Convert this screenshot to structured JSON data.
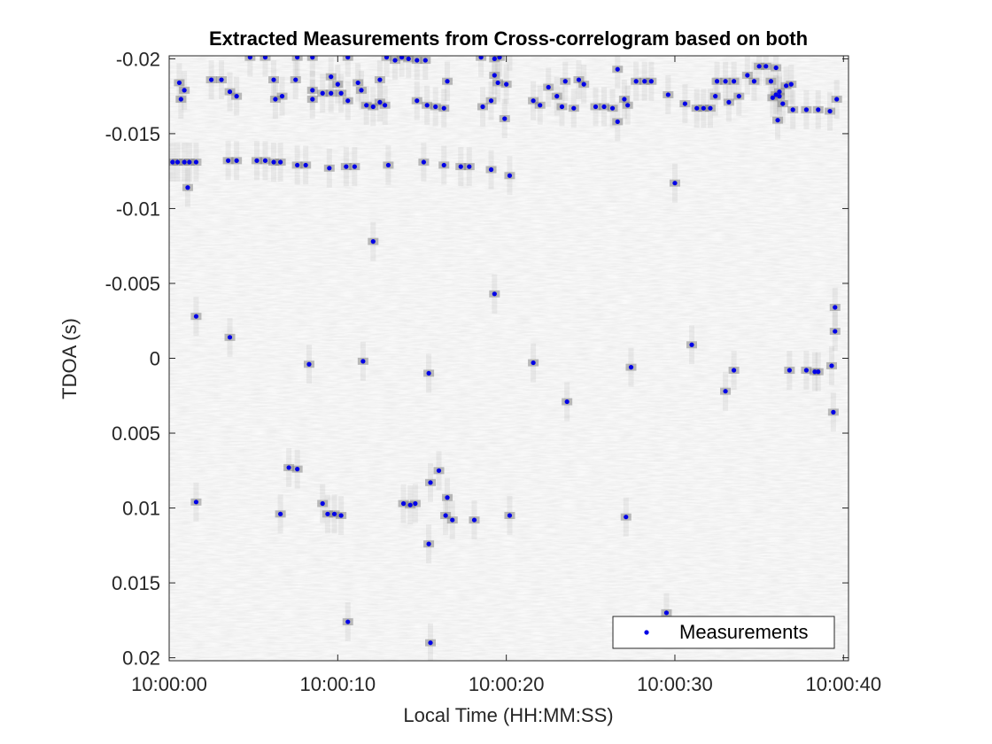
{
  "chart_data": {
    "type": "scatter",
    "title": "Extracted Measurements from Cross-correlogram based on both",
    "xlabel": "Local Time (HH:MM:SS)",
    "ylabel": "TDOA (s)",
    "xlim": [
      0,
      40.3
    ],
    "ylim": [
      -0.0202,
      0.0202
    ],
    "y_reversed": true,
    "grid": false,
    "background": "cross-correlogram (grayscale)",
    "x_ticks": [
      0,
      10,
      20,
      30,
      40
    ],
    "x_tick_labels": [
      "10:00:00",
      "10:00:10",
      "10:00:20",
      "10:00:30",
      "10:00:40"
    ],
    "y_ticks": [
      -0.02,
      -0.015,
      -0.01,
      -0.005,
      0,
      0.005,
      0.01,
      0.015,
      0.02
    ],
    "y_tick_labels": [
      "-0.02",
      "-0.015",
      "-0.01",
      "-0.005",
      "0",
      "0.005",
      "0.01",
      "0.015",
      "0.02"
    ],
    "legend": {
      "entries": [
        "Measurements"
      ],
      "position": "bottom-right"
    },
    "colors": {
      "marker": "#0000e6",
      "axis": "#262626",
      "background_base": "#ececec"
    },
    "series": [
      {
        "name": "Measurements",
        "points": [
          [
            0.2,
            -0.0131
          ],
          [
            0.5,
            -0.0131
          ],
          [
            0.9,
            -0.0131
          ],
          [
            1.2,
            -0.0131
          ],
          [
            1.6,
            -0.0131
          ],
          [
            0.6,
            -0.0184
          ],
          [
            0.9,
            -0.0179
          ],
          [
            0.7,
            -0.0173
          ],
          [
            1.1,
            -0.0114
          ],
          [
            2.5,
            -0.0186
          ],
          [
            3.1,
            -0.0186
          ],
          [
            3.6,
            -0.0178
          ],
          [
            4.0,
            -0.0175
          ],
          [
            3.5,
            -0.0132
          ],
          [
            4.0,
            -0.0132
          ],
          [
            4.8,
            -0.0201
          ],
          [
            5.7,
            -0.0201
          ],
          [
            5.2,
            -0.0132
          ],
          [
            5.7,
            -0.0132
          ],
          [
            6.2,
            -0.0131
          ],
          [
            6.6,
            -0.0131
          ],
          [
            6.2,
            -0.0186
          ],
          [
            6.3,
            -0.0173
          ],
          [
            6.7,
            -0.0175
          ],
          [
            7.5,
            -0.0186
          ],
          [
            7.6,
            -0.0201
          ],
          [
            8.5,
            -0.0201
          ],
          [
            7.6,
            -0.0129
          ],
          [
            8.1,
            -0.0129
          ],
          [
            8.5,
            -0.0173
          ],
          [
            8.5,
            -0.0179
          ],
          [
            9.1,
            -0.0177
          ],
          [
            9.6,
            -0.0177
          ],
          [
            9.6,
            -0.0188
          ],
          [
            10.0,
            -0.0183
          ],
          [
            10.2,
            -0.0177
          ],
          [
            10.6,
            -0.0201
          ],
          [
            9.5,
            -0.0127
          ],
          [
            10.5,
            -0.0128
          ],
          [
            11.0,
            -0.0128
          ],
          [
            10.6,
            -0.0172
          ],
          [
            11.2,
            -0.0184
          ],
          [
            11.4,
            -0.0179
          ],
          [
            11.7,
            -0.0169
          ],
          [
            12.1,
            -0.0168
          ],
          [
            12.5,
            -0.0171
          ],
          [
            12.8,
            -0.0169
          ],
          [
            12.5,
            -0.0186
          ],
          [
            13.0,
            -0.0129
          ],
          [
            12.9,
            -0.0201
          ],
          [
            13.4,
            -0.0199
          ],
          [
            13.8,
            -0.0201
          ],
          [
            14.2,
            -0.02
          ],
          [
            14.7,
            -0.0199
          ],
          [
            15.2,
            -0.0199
          ],
          [
            14.7,
            -0.0172
          ],
          [
            15.3,
            -0.0169
          ],
          [
            15.8,
            -0.0168
          ],
          [
            16.3,
            -0.0167
          ],
          [
            15.1,
            -0.0131
          ],
          [
            16.3,
            -0.0129
          ],
          [
            17.3,
            -0.0128
          ],
          [
            17.8,
            -0.0128
          ],
          [
            16.5,
            -0.0185
          ],
          [
            18.5,
            -0.0201
          ],
          [
            19.3,
            -0.02
          ],
          [
            18.6,
            -0.0168
          ],
          [
            19.1,
            -0.0172
          ],
          [
            19.3,
            -0.0189
          ],
          [
            19.5,
            -0.0184
          ],
          [
            19.6,
            -0.0201
          ],
          [
            20.0,
            -0.0183
          ],
          [
            20.2,
            -0.0205
          ],
          [
            19.1,
            -0.0126
          ],
          [
            20.2,
            -0.0122
          ],
          [
            19.9,
            -0.016
          ],
          [
            12.1,
            -0.0078
          ],
          [
            19.3,
            -0.0043
          ],
          [
            21.6,
            -0.0172
          ],
          [
            22.0,
            -0.0169
          ],
          [
            22.5,
            -0.0181
          ],
          [
            23.0,
            -0.0175
          ],
          [
            23.3,
            -0.0168
          ],
          [
            23.5,
            -0.0185
          ],
          [
            24.0,
            -0.0167
          ],
          [
            24.3,
            -0.0186
          ],
          [
            24.6,
            -0.0183
          ],
          [
            25.3,
            -0.0168
          ],
          [
            25.8,
            -0.0168
          ],
          [
            26.3,
            -0.0167
          ],
          [
            26.6,
            -0.0158
          ],
          [
            26.6,
            -0.0193
          ],
          [
            27.0,
            -0.0173
          ],
          [
            27.2,
            -0.0169
          ],
          [
            27.7,
            -0.0185
          ],
          [
            28.2,
            -0.0185
          ],
          [
            28.6,
            -0.0185
          ],
          [
            29.6,
            -0.0176
          ],
          [
            30.0,
            -0.0117
          ],
          [
            30.6,
            -0.017
          ],
          [
            31.3,
            -0.0167
          ],
          [
            31.7,
            -0.0167
          ],
          [
            32.1,
            -0.0167
          ],
          [
            32.4,
            -0.0175
          ],
          [
            32.5,
            -0.0185
          ],
          [
            33.0,
            -0.0185
          ],
          [
            33.2,
            -0.0171
          ],
          [
            33.5,
            -0.0185
          ],
          [
            33.8,
            -0.0175
          ],
          [
            34.3,
            -0.0189
          ],
          [
            34.7,
            -0.0185
          ],
          [
            35.0,
            -0.0195
          ],
          [
            35.4,
            -0.0195
          ],
          [
            35.7,
            -0.0185
          ],
          [
            35.8,
            -0.0174
          ],
          [
            36.0,
            -0.0194
          ],
          [
            36.2,
            -0.0178
          ],
          [
            36.2,
            -0.0175
          ],
          [
            36.4,
            -0.017
          ],
          [
            36.6,
            -0.0182
          ],
          [
            36.9,
            -0.0183
          ],
          [
            37.0,
            -0.0166
          ],
          [
            36.1,
            -0.0159
          ],
          [
            36.0,
            -0.0176
          ],
          [
            37.8,
            -0.0166
          ],
          [
            38.5,
            -0.0166
          ],
          [
            39.2,
            -0.0165
          ],
          [
            39.6,
            -0.0173
          ],
          [
            1.6,
            -0.0028
          ],
          [
            3.6,
            -0.0014
          ],
          [
            11.5,
            0.0002
          ],
          [
            8.3,
            0.0004
          ],
          [
            15.4,
            0.001
          ],
          [
            21.6,
            0.0003
          ],
          [
            23.6,
            0.0029
          ],
          [
            27.4,
            0.0006
          ],
          [
            31.0,
            -0.0009
          ],
          [
            33.5,
            0.0008
          ],
          [
            33.0,
            0.0022
          ],
          [
            36.8,
            0.0008
          ],
          [
            37.8,
            0.0008
          ],
          [
            38.3,
            0.0009
          ],
          [
            38.5,
            0.0009
          ],
          [
            39.3,
            0.0005
          ],
          [
            39.5,
            -0.0034
          ],
          [
            39.5,
            -0.0018
          ],
          [
            39.4,
            0.0036
          ],
          [
            1.6,
            0.0096
          ],
          [
            6.6,
            0.0104
          ],
          [
            7.1,
            0.0073
          ],
          [
            7.6,
            0.0074
          ],
          [
            9.1,
            0.0097
          ],
          [
            9.4,
            0.0104
          ],
          [
            9.8,
            0.0104
          ],
          [
            10.2,
            0.0105
          ],
          [
            13.9,
            0.0097
          ],
          [
            14.3,
            0.0098
          ],
          [
            14.6,
            0.0097
          ],
          [
            15.5,
            0.0083
          ],
          [
            16.0,
            0.0075
          ],
          [
            16.5,
            0.0093
          ],
          [
            16.4,
            0.0105
          ],
          [
            16.8,
            0.0108
          ],
          [
            18.1,
            0.0108
          ],
          [
            20.2,
            0.0105
          ],
          [
            15.4,
            0.0124
          ],
          [
            10.6,
            0.0176
          ],
          [
            15.5,
            0.019
          ],
          [
            29.5,
            0.017
          ],
          [
            27.1,
            0.0106
          ]
        ]
      }
    ]
  }
}
